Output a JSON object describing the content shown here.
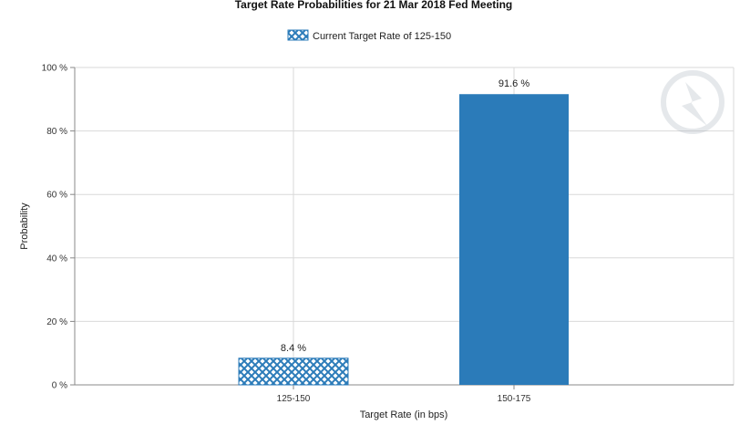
{
  "chart_data": {
    "type": "bar",
    "title": "Target Rate Probabilities for 21 Mar 2018 Fed Meeting",
    "xlabel": "Target Rate (in bps)",
    "ylabel": "Probability",
    "categories": [
      "125-150",
      "150-175"
    ],
    "values": [
      8.4,
      91.6
    ],
    "data_labels": [
      "8.4 %",
      "91.6 %"
    ],
    "ylim": [
      0,
      100
    ],
    "yticks": [
      0,
      20,
      40,
      60,
      80,
      100
    ],
    "ytick_labels": [
      "0 %",
      "20 %",
      "40 %",
      "60 %",
      "80 %",
      "100 %"
    ],
    "grid": true,
    "legend": {
      "placement": "top-center",
      "entries": [
        "Current Target Rate of 125-150"
      ]
    },
    "highlighted_category": "125-150",
    "colors": {
      "bar": "#2b7bb9",
      "highlight_pattern": "#2b7bb9",
      "grid": "#d9d9d9",
      "axis": "#888888"
    }
  },
  "watermark": {
    "icon": "cme-fedwatch-logo-icon"
  }
}
